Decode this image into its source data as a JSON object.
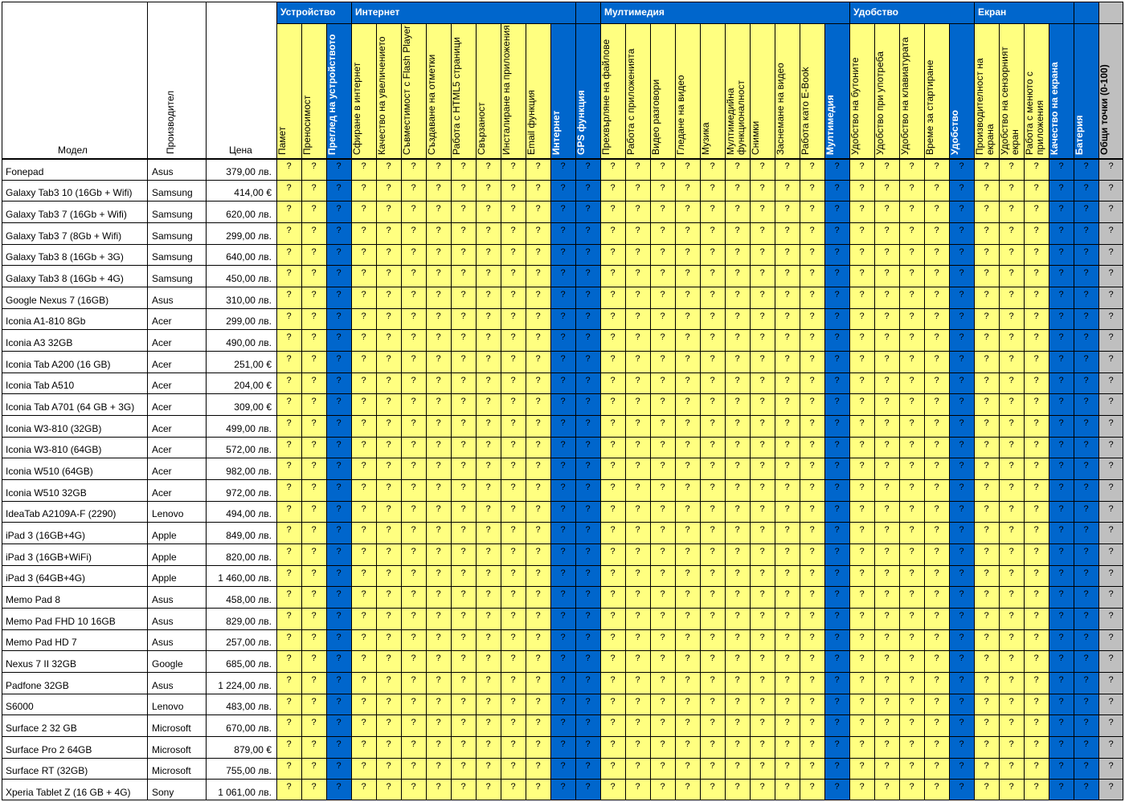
{
  "headers": {
    "model": "Модел",
    "maker": "Производител",
    "price": "Цена"
  },
  "groups": [
    {
      "label": "Устройство",
      "items": [
        "Памет",
        "Преносимост"
      ],
      "summary": "Преглед на устройството"
    },
    {
      "label": "Интернет",
      "items": [
        "Сфиране в интернет",
        "Качество на увеличението",
        "Съвместимост с Flash Player",
        "Създаване на отметки",
        "Работа с HTML5 страници",
        "Свързаност",
        "Инсталиране на приложения",
        "Email функция"
      ],
      "summary": "Интернет"
    },
    {
      "label": "",
      "items": [],
      "summary": "GPS функция"
    },
    {
      "label": "Мултимедия",
      "items": [
        "Прехвърляне на файлове",
        "Работа с приложенията",
        "Видео разговори",
        "Гледане на видео",
        "Музика",
        "Мултимедийна функционалност",
        "Снимки",
        "Заснемане на видео",
        "Работа като E-Book"
      ],
      "summary": "Мултимедия"
    },
    {
      "label": "Удобство",
      "items": [
        "Удобство на бутоните",
        "Удобство при употреба",
        "Удобство на клавиатурата",
        "Време за стартиране"
      ],
      "summary": "Удобство"
    },
    {
      "label": "Екран",
      "items": [
        "Производителност на екрана",
        "Удобство на сензорният екран",
        "Работа с менюто с приложения"
      ],
      "summary": "Качество на екрана"
    },
    {
      "label": "",
      "items": [],
      "summary": "Батерия"
    }
  ],
  "total_header": "Общи точки (0-100)",
  "placeholder": "?",
  "colors": {
    "yellow": "#ffff80",
    "blue": "#0066cc",
    "gray": "#bfbfbf"
  },
  "rows": [
    {
      "model": "Fonepad",
      "maker": "Asus",
      "price": "379,00 лв."
    },
    {
      "model": "Galaxy Tab3 10 (16Gb + Wifi)",
      "maker": "Samsung",
      "price": "414,00 €"
    },
    {
      "model": "Galaxy Tab3 7 (16Gb + Wifi)",
      "maker": "Samsung",
      "price": "620,00 лв."
    },
    {
      "model": "Galaxy Tab3 7 (8Gb + Wifi)",
      "maker": "Samsung",
      "price": "299,00 лв."
    },
    {
      "model": "Galaxy Tab3 8 (16Gb + 3G)",
      "maker": "Samsung",
      "price": "640,00 лв."
    },
    {
      "model": "Galaxy Tab3 8 (16Gb + 4G)",
      "maker": "Samsung",
      "price": "450,00 лв."
    },
    {
      "model": "Google Nexus 7 (16GB)",
      "maker": "Asus",
      "price": "310,00 лв."
    },
    {
      "model": "Iconia A1-810 8Gb",
      "maker": "Acer",
      "price": "299,00 лв."
    },
    {
      "model": "Iconia A3 32GB",
      "maker": "Acer",
      "price": "490,00 лв."
    },
    {
      "model": "Iconia Tab A200 (16 GB)",
      "maker": "Acer",
      "price": "251,00 €"
    },
    {
      "model": "Iconia Tab A510",
      "maker": "Acer",
      "price": "204,00 €"
    },
    {
      "model": "Iconia Tab A701 (64 GB + 3G)",
      "maker": "Acer",
      "price": "309,00 €"
    },
    {
      "model": "Iconia W3-810 (32GB)",
      "maker": "Acer",
      "price": "499,00 лв."
    },
    {
      "model": "Iconia W3-810 (64GB)",
      "maker": "Acer",
      "price": "572,00 лв."
    },
    {
      "model": "Iconia W510 (64GB)",
      "maker": "Acer",
      "price": "982,00 лв."
    },
    {
      "model": "Iconia W510 32GB",
      "maker": "Acer",
      "price": "972,00 лв."
    },
    {
      "model": "IdeaTab A2109A-F (2290)",
      "maker": "Lenovo",
      "price": "494,00 лв."
    },
    {
      "model": "iPad 3 (16GB+4G)",
      "maker": "Apple",
      "price": "849,00 лв."
    },
    {
      "model": "iPad 3 (16GB+WiFi)",
      "maker": "Apple",
      "price": "820,00 лв."
    },
    {
      "model": "iPad 3 (64GB+4G)",
      "maker": "Apple",
      "price": "1 460,00 лв."
    },
    {
      "model": "Memo Pad 8",
      "maker": "Asus",
      "price": "458,00 лв."
    },
    {
      "model": "Memo Pad FHD 10 16GB",
      "maker": "Asus",
      "price": "829,00 лв."
    },
    {
      "model": "Memo Pad HD 7",
      "maker": "Asus",
      "price": "257,00 лв."
    },
    {
      "model": "Nexus 7 II 32GB",
      "maker": "Google",
      "price": "685,00 лв."
    },
    {
      "model": "Padfone 32GB",
      "maker": "Asus",
      "price": "1 224,00 лв."
    },
    {
      "model": "S6000",
      "maker": "Lenovo",
      "price": "483,00 лв."
    },
    {
      "model": "Surface 2 32 GB",
      "maker": "Microsoft",
      "price": "670,00 лв."
    },
    {
      "model": "Surface Pro 2 64GB",
      "maker": "Microsoft",
      "price": "879,00 €"
    },
    {
      "model": "Surface RT (32GB)",
      "maker": "Microsoft",
      "price": "755,00 лв."
    },
    {
      "model": "Xperia Tablet Z (16 GB + 4G)",
      "maker": "Sony",
      "price": "1 061,00 лв."
    }
  ]
}
